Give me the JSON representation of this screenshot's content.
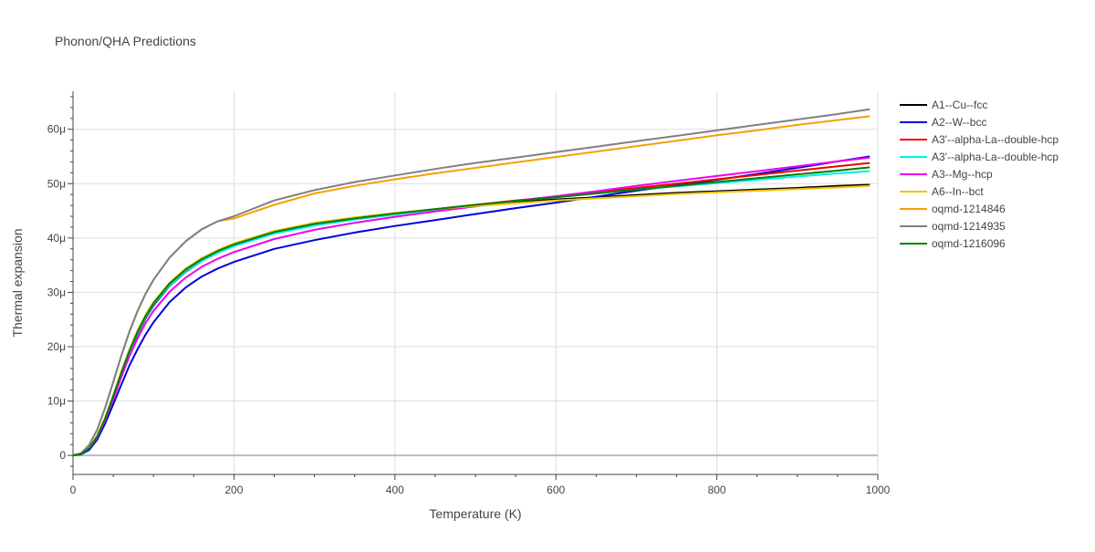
{
  "chart_data": {
    "type": "line",
    "title": "Phonon/QHA Predictions",
    "xlabel": "Temperature (K)",
    "ylabel": "Thermal expansion",
    "xlim": [
      0,
      1000
    ],
    "ylim": [
      -3.5e-06,
      6.7e-05
    ],
    "x_ticks": [
      {
        "value": 0,
        "label": "0"
      },
      {
        "value": 200,
        "label": "200"
      },
      {
        "value": 400,
        "label": "400"
      },
      {
        "value": 600,
        "label": "600"
      },
      {
        "value": 800,
        "label": "800"
      },
      {
        "value": 1000,
        "label": "1000"
      }
    ],
    "y_ticks": [
      {
        "value": 0,
        "label": "0"
      },
      {
        "value": 1e-05,
        "label": "10μ"
      },
      {
        "value": 2e-05,
        "label": "20μ"
      },
      {
        "value": 3e-05,
        "label": "30μ"
      },
      {
        "value": 4e-05,
        "label": "40μ"
      },
      {
        "value": 5e-05,
        "label": "50μ"
      },
      {
        "value": 6e-05,
        "label": "60μ"
      }
    ],
    "grid": true,
    "legend_position": "right",
    "x": [
      0,
      10,
      20,
      30,
      40,
      50,
      60,
      70,
      80,
      90,
      100,
      120,
      140,
      160,
      180,
      200,
      250,
      300,
      350,
      400,
      450,
      500,
      550,
      600,
      650,
      700,
      750,
      800,
      850,
      900,
      950,
      990
    ],
    "series": [
      {
        "name": "A1--Cu--fcc",
        "color": "#000000",
        "values": [
          0,
          2e-07,
          1.2e-06,
          3.2e-06,
          6.5e-06,
          1.05e-05,
          1.48e-05,
          1.88e-05,
          2.23e-05,
          2.52e-05,
          2.76e-05,
          3.12e-05,
          3.38e-05,
          3.58e-05,
          3.73e-05,
          3.86e-05,
          4.1e-05,
          4.26e-05,
          4.37e-05,
          4.45e-05,
          4.53e-05,
          4.6e-05,
          4.66e-05,
          4.71e-05,
          4.75e-05,
          4.79e-05,
          4.83e-05,
          4.86e-05,
          4.89e-05,
          4.92e-05,
          4.96e-05,
          4.98e-05
        ]
      },
      {
        "name": "A2--W--bcc",
        "color": "#0000dd",
        "values": [
          0,
          2e-07,
          1e-06,
          2.9e-06,
          5.9e-06,
          9.4e-06,
          1.3e-05,
          1.65e-05,
          1.95e-05,
          2.22e-05,
          2.45e-05,
          2.82e-05,
          3.09e-05,
          3.29e-05,
          3.44e-05,
          3.56e-05,
          3.8e-05,
          3.96e-05,
          4.1e-05,
          4.22e-05,
          4.33e-05,
          4.44e-05,
          4.55e-05,
          4.65e-05,
          4.76e-05,
          4.87e-05,
          4.97e-05,
          5.07e-05,
          5.18e-05,
          5.29e-05,
          5.41e-05,
          5.5e-05
        ]
      },
      {
        "name": "A3'--alpha-La--double-hcp",
        "color": "#ee0000",
        "values": [
          0,
          3e-07,
          1.3e-06,
          3.4e-06,
          6.7e-06,
          1.07e-05,
          1.5e-05,
          1.9e-05,
          2.25e-05,
          2.54e-05,
          2.78e-05,
          3.14e-05,
          3.4e-05,
          3.59e-05,
          3.74e-05,
          3.86e-05,
          4.09e-05,
          4.24e-05,
          4.35e-05,
          4.44e-05,
          4.53e-05,
          4.61e-05,
          4.69e-05,
          4.76e-05,
          4.84e-05,
          4.92e-05,
          5e-05,
          5.08e-05,
          5.16e-05,
          5.24e-05,
          5.32e-05,
          5.38e-05
        ]
      },
      {
        "name": "A3'--alpha-La--double-hcp",
        "color": "#00eeee",
        "values": [
          0,
          3e-07,
          1.3e-06,
          3.4e-06,
          6.7e-06,
          1.07e-05,
          1.5e-05,
          1.9e-05,
          2.25e-05,
          2.54e-05,
          2.78e-05,
          3.13e-05,
          3.39e-05,
          3.58e-05,
          3.73e-05,
          3.85e-05,
          4.08e-05,
          4.23e-05,
          4.34e-05,
          4.43e-05,
          4.52e-05,
          4.6e-05,
          4.68e-05,
          4.75e-05,
          4.82e-05,
          4.89e-05,
          4.95e-05,
          5.01e-05,
          5.07e-05,
          5.13e-05,
          5.19e-05,
          5.23e-05
        ]
      },
      {
        "name": "A3--Mg--hcp",
        "color": "#ee00ee",
        "values": [
          0,
          3e-07,
          1.3e-06,
          3.3e-06,
          6.5e-06,
          1.03e-05,
          1.44e-05,
          1.82e-05,
          2.15e-05,
          2.43e-05,
          2.66e-05,
          3.01e-05,
          3.27e-05,
          3.47e-05,
          3.62e-05,
          3.74e-05,
          3.98e-05,
          4.15e-05,
          4.28e-05,
          4.39e-05,
          4.49e-05,
          4.58e-05,
          4.68e-05,
          4.77e-05,
          4.86e-05,
          4.96e-05,
          5.05e-05,
          5.14e-05,
          5.23e-05,
          5.32e-05,
          5.41e-05,
          5.48e-05
        ]
      },
      {
        "name": "A6--In--bct",
        "color": "#f2c200",
        "values": [
          0,
          3e-07,
          1.4e-06,
          3.6e-06,
          7e-06,
          1.11e-05,
          1.54e-05,
          1.94e-05,
          2.29e-05,
          2.58e-05,
          2.82e-05,
          3.18e-05,
          3.44e-05,
          3.63e-05,
          3.78e-05,
          3.9e-05,
          4.13e-05,
          4.28e-05,
          4.38e-05,
          4.46e-05,
          4.53e-05,
          4.59e-05,
          4.64e-05,
          4.69e-05,
          4.73e-05,
          4.77e-05,
          4.81e-05,
          4.84e-05,
          4.87e-05,
          4.9e-05,
          4.93e-05,
          4.96e-05
        ]
      },
      {
        "name": "oqmd-1214846",
        "color": "#f5a000",
        "values": [
          0,
          4e-07,
          1.9e-06,
          4.7e-06,
          8.8e-06,
          1.35e-05,
          1.83e-05,
          2.27e-05,
          2.65e-05,
          2.97e-05,
          3.23e-05,
          3.64e-05,
          3.94e-05,
          4.16e-05,
          4.31e-05,
          4.36e-05,
          4.61e-05,
          4.82e-05,
          4.96e-05,
          5.08e-05,
          5.19e-05,
          5.29e-05,
          5.39e-05,
          5.49e-05,
          5.59e-05,
          5.69e-05,
          5.79e-05,
          5.89e-05,
          5.98e-05,
          6.08e-05,
          6.17e-05,
          6.24e-05
        ]
      },
      {
        "name": "oqmd-1214935",
        "color": "#808080",
        "values": [
          0,
          4e-07,
          1.9e-06,
          4.7e-06,
          8.8e-06,
          1.35e-05,
          1.83e-05,
          2.27e-05,
          2.65e-05,
          2.97e-05,
          3.23e-05,
          3.64e-05,
          3.94e-05,
          4.16e-05,
          4.31e-05,
          4.4e-05,
          4.69e-05,
          4.88e-05,
          5.03e-05,
          5.15e-05,
          5.27e-05,
          5.38e-05,
          5.48e-05,
          5.58e-05,
          5.68e-05,
          5.78e-05,
          5.88e-05,
          5.98e-05,
          6.08e-05,
          6.18e-05,
          6.28e-05,
          6.37e-05
        ]
      },
      {
        "name": "oqmd-1216096",
        "color": "#008000",
        "values": [
          0,
          3e-07,
          1.3e-06,
          3.5e-06,
          6.8e-06,
          1.09e-05,
          1.52e-05,
          1.92e-05,
          2.27e-05,
          2.56e-05,
          2.8e-05,
          3.16e-05,
          3.42e-05,
          3.61e-05,
          3.76e-05,
          3.88e-05,
          4.11e-05,
          4.26e-05,
          4.36e-05,
          4.45e-05,
          4.53e-05,
          4.61e-05,
          4.68e-05,
          4.75e-05,
          4.82e-05,
          4.89e-05,
          4.96e-05,
          5.03e-05,
          5.1e-05,
          5.17e-05,
          5.24e-05,
          5.3e-05
        ]
      }
    ]
  }
}
